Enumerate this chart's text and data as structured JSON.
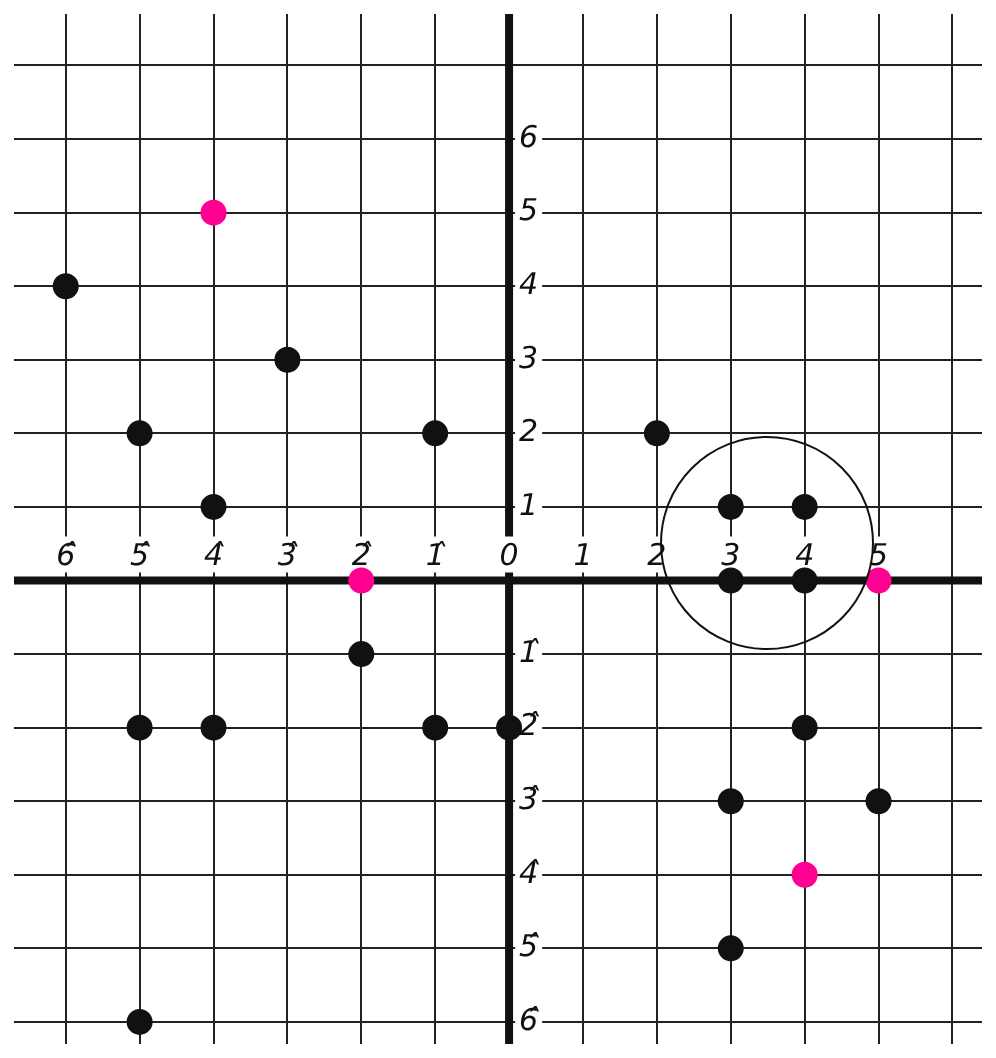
{
  "chart_data": {
    "type": "scatter",
    "marker": "circle",
    "grid": true,
    "legend": false,
    "xlim": [
      -6.7,
      6.4
    ],
    "ylim": [
      -6.3,
      7.7
    ],
    "xticks": [
      {
        "value": -6,
        "label": "6̂"
      },
      {
        "value": -5,
        "label": "5̂"
      },
      {
        "value": -4,
        "label": "4̂"
      },
      {
        "value": -3,
        "label": "3̂"
      },
      {
        "value": -2,
        "label": "2̂"
      },
      {
        "value": -1,
        "label": "1̂"
      },
      0,
      1,
      2,
      3,
      4,
      5,
      {
        "value": 6,
        "label": null
      }
    ],
    "yticks": [
      {
        "value": -6,
        "label": "6̂"
      },
      {
        "value": -5,
        "label": "5̂"
      },
      {
        "value": -4,
        "label": "4̂"
      },
      {
        "value": -3,
        "label": "3̂"
      },
      {
        "value": -2,
        "label": "2̂"
      },
      {
        "value": -1,
        "label": "1̂"
      },
      {
        "value": 0,
        "label": null
      },
      1,
      2,
      3,
      4,
      5,
      6,
      {
        "value": 7,
        "label": null
      }
    ],
    "series": [
      {
        "color": "#111111",
        "x": [
          -6,
          -5,
          -4,
          -3,
          -1,
          2,
          3,
          4,
          3,
          4,
          -2,
          -5,
          -4,
          -1,
          0,
          4,
          3,
          5,
          3,
          -5
        ],
        "values": [
          4,
          2,
          1,
          3,
          2,
          2,
          1,
          1,
          0,
          0,
          -1,
          -2,
          -2,
          -2,
          -2,
          -2,
          -3,
          -3,
          -5,
          -6
        ]
      },
      {
        "color": "#ff0090",
        "x": [
          -4,
          -2,
          5,
          4
        ],
        "values": [
          5,
          0,
          0,
          -4
        ]
      }
    ]
  }
}
